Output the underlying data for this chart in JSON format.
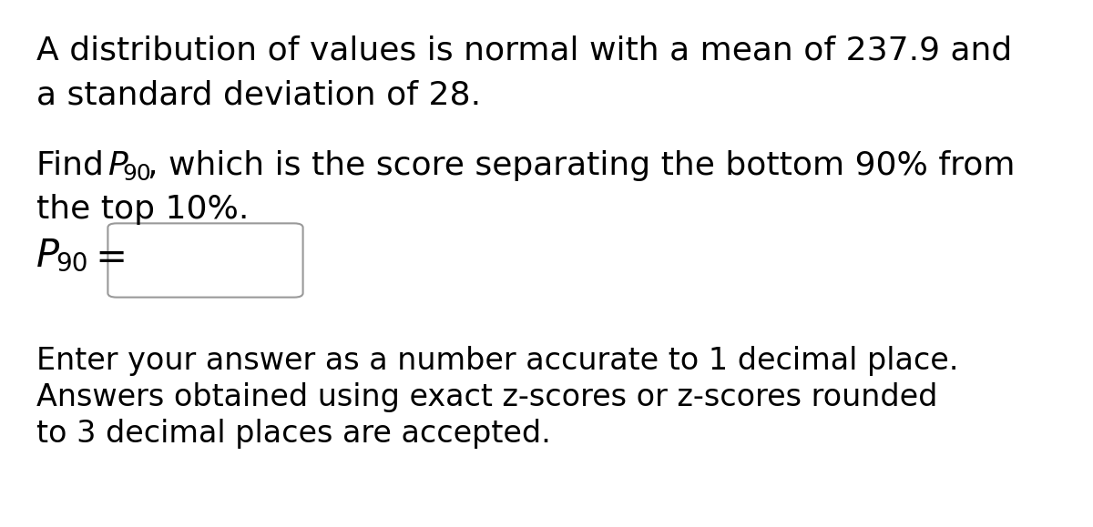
{
  "background_color": "#ffffff",
  "line1": "A distribution of values is normal with a mean of 237.9 and",
  "line2": "a standard deviation of 28.",
  "line3_pre": "Find ",
  "line3_P": "P",
  "line3_sub": "90",
  "line3_post": ", which is the score separating the bottom 90% from",
  "line4": "the top 10%.",
  "label_P": "P",
  "label_sub": "90",
  "label_eq": " =",
  "footer1": "Enter your answer as a number accurate to 1 decimal place.",
  "footer2": "Answers obtained using exact z-scores or z-scores rounded",
  "footer3": "to 3 decimal places are accepted.",
  "text_color": "#000000",
  "font_size_main": 26,
  "font_size_sub": 18,
  "font_size_label_P": 30,
  "font_size_label_sub": 20,
  "font_size_footer": 24
}
